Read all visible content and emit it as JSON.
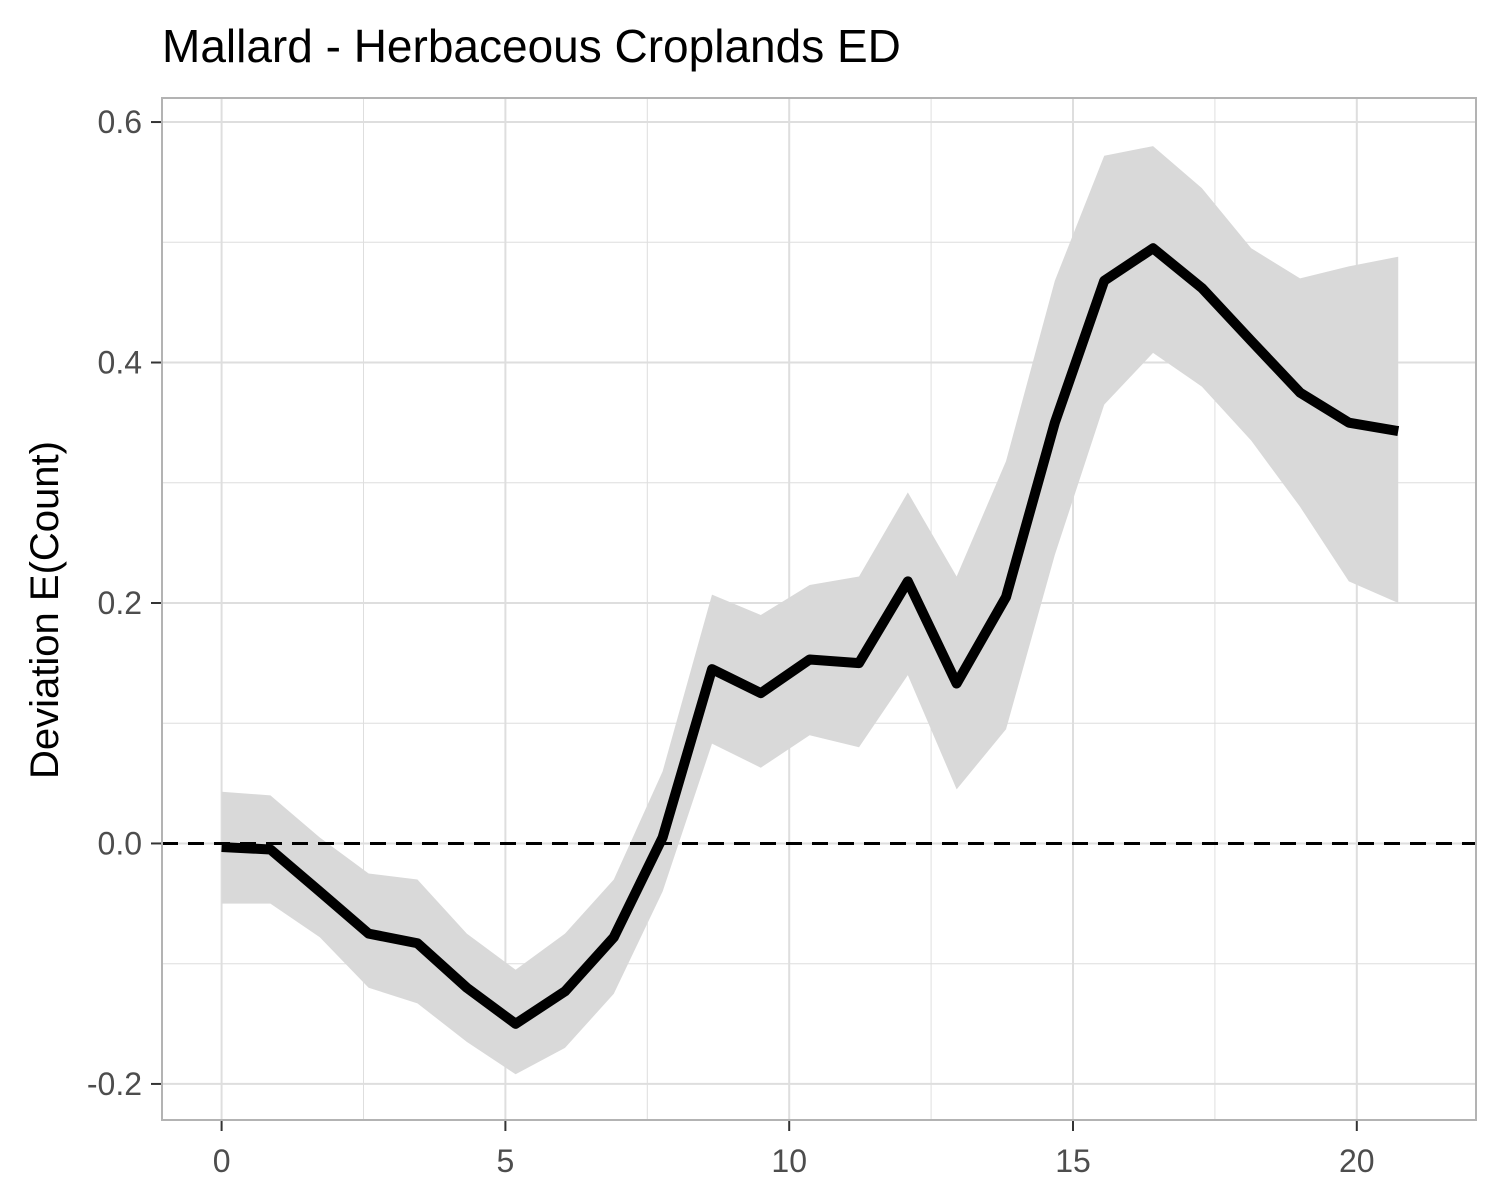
{
  "chart_data": {
    "type": "line",
    "title": "Mallard - Herbaceous Croplands ED",
    "xlabel": "",
    "ylabel": "Deviation E(Count)",
    "xlim": [
      -1.05,
      22.1
    ],
    "ylim": [
      -0.23,
      0.62
    ],
    "x_ticks": [
      0,
      5,
      10,
      15,
      20
    ],
    "x_tick_labels": [
      "0",
      "5",
      "10",
      "15",
      "20"
    ],
    "y_ticks": [
      -0.2,
      0.0,
      0.2,
      0.4,
      0.6
    ],
    "y_tick_labels": [
      "-0.2",
      "0.0",
      "0.2",
      "0.4",
      "0.6"
    ],
    "grid": true,
    "reference_line": {
      "y": 0.0,
      "style": "dashed"
    },
    "colors": {
      "line": "#000000",
      "ribbon": "#d9d9d9",
      "grid": "#dedede",
      "border": "#b3b3b3",
      "tick_text": "#4d4d4d"
    },
    "series": [
      {
        "x": [
          0.0,
          0.86,
          1.73,
          2.59,
          3.45,
          4.32,
          5.18,
          6.05,
          6.91,
          7.77,
          8.64,
          9.5,
          10.36,
          11.23,
          12.09,
          12.95,
          13.82,
          14.68,
          15.55,
          16.41,
          17.27,
          18.14,
          19.0,
          19.86,
          20.73
        ],
        "y": [
          -0.003,
          -0.005,
          -0.04,
          -0.075,
          -0.083,
          -0.12,
          -0.15,
          -0.123,
          -0.078,
          0.005,
          0.145,
          0.125,
          0.153,
          0.15,
          0.218,
          0.133,
          0.205,
          0.35,
          0.468,
          0.495,
          0.462,
          0.418,
          0.375,
          0.35,
          0.343
        ],
        "lower": [
          -0.05,
          -0.05,
          -0.078,
          -0.12,
          -0.133,
          -0.165,
          -0.192,
          -0.17,
          -0.125,
          -0.04,
          0.083,
          0.063,
          0.09,
          0.08,
          0.14,
          0.045,
          0.095,
          0.24,
          0.365,
          0.408,
          0.38,
          0.335,
          0.28,
          0.218,
          0.2
        ],
        "upper": [
          0.043,
          0.04,
          0.005,
          -0.025,
          -0.03,
          -0.075,
          -0.105,
          -0.075,
          -0.03,
          0.06,
          0.207,
          0.19,
          0.215,
          0.222,
          0.292,
          0.222,
          0.318,
          0.468,
          0.572,
          0.58,
          0.545,
          0.495,
          0.47,
          0.48,
          0.488
        ]
      }
    ]
  }
}
